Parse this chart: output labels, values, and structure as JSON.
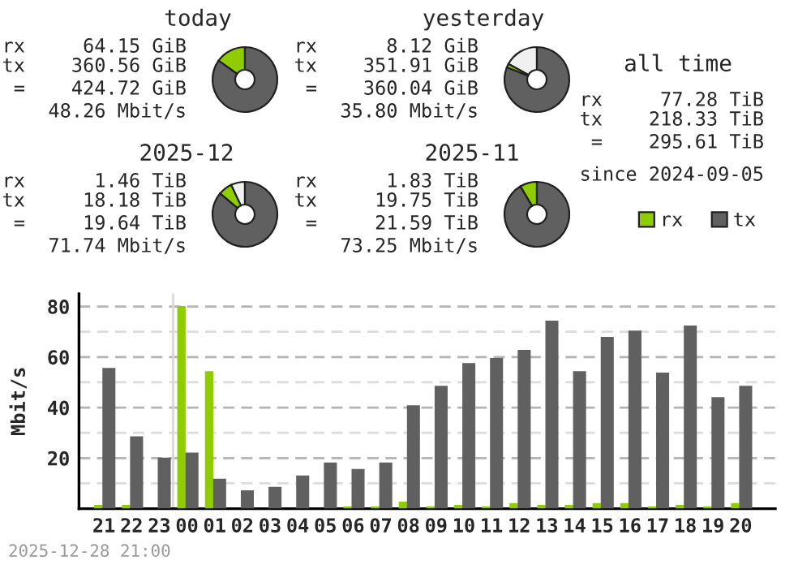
{
  "chart_data": [
    {
      "type": "donut",
      "title": "today",
      "categories": [
        null,
        null,
        null
      ],
      "values": [
        0,
        15.1,
        84.9
      ],
      "colors": [
        "#f0f0f0",
        "#8fcc00",
        "#606060"
      ],
      "annotations": [
        "rx     64.15 GiB",
        "tx    360.56 GiB",
        " =    424.72 GiB",
        "48.26 Mbit/s"
      ]
    },
    {
      "type": "donut",
      "title": "yesterday",
      "categories": [
        null,
        null,
        null
      ],
      "values": [
        17,
        1.9,
        81.1
      ],
      "colors": [
        "#f0f0f0",
        "#8fcc00",
        "#606060"
      ],
      "annotations": [
        "rx      8.12 GiB",
        "tx    351.91 GiB",
        " =    360.04 GiB",
        "35.80 Mbit/s"
      ]
    },
    {
      "type": "donut",
      "title": "2025-12",
      "categories": [
        null,
        null,
        null
      ],
      "values": [
        7,
        6.9,
        86.1
      ],
      "colors": [
        "#f0f0f0",
        "#8fcc00",
        "#606060"
      ],
      "annotations": [
        "rx      1.46 TiB",
        "tx     18.18 TiB",
        " =     19.64 TiB",
        "71.74 Mbit/s"
      ]
    },
    {
      "type": "donut",
      "title": "2025-11",
      "categories": [
        null,
        null,
        null
      ],
      "values": [
        0,
        8.5,
        91.5
      ],
      "colors": [
        "#f0f0f0",
        "#8fcc00",
        "#606060"
      ],
      "annotations": [
        "rx      1.83 TiB",
        "tx     19.75 TiB",
        " =     21.59 TiB",
        "73.25 Mbit/s"
      ]
    },
    {
      "type": "other",
      "title": "all time",
      "annotations": [
        "rx     77.28 TiB",
        "tx    218.33 TiB",
        " =    295.61 TiB",
        "since 2024-09-05"
      ]
    },
    {
      "type": "bar",
      "ylabel": "Mbit/s",
      "annotations": [
        "2025-12-28 21:00"
      ],
      "categories": [
        "21",
        "22",
        "23",
        "00",
        "01",
        "02",
        "03",
        "04",
        "05",
        "06",
        "07",
        "08",
        "09",
        "10",
        "11",
        "12",
        "13",
        "14",
        "15",
        "16",
        "17",
        "18",
        "19",
        "20"
      ],
      "series": [
        {
          "name": "rx",
          "color": "#8fcc00",
          "values": [
            1.5,
            1.5,
            0,
            80.2,
            54.4,
            0,
            0,
            0,
            0,
            0.9,
            0.9,
            2.8,
            0.9,
            1.5,
            0.9,
            2.2,
            1.5,
            1.5,
            2.2,
            2.2,
            0.9,
            1.5,
            0.9,
            2.2
          ]
        },
        {
          "name": "tx",
          "color": "#606060",
          "values": [
            55.7,
            28.6,
            20.2,
            22.2,
            11.8,
            7.3,
            8.6,
            13.1,
            18.3,
            15.7,
            18.3,
            40.9,
            48.6,
            57.6,
            59.6,
            62.8,
            74.4,
            54.4,
            68.0,
            70.5,
            53.8,
            72.5,
            44.1,
            48.6
          ]
        }
      ],
      "ylim": [
        0,
        85
      ],
      "yticks": [
        {
          "value": 10,
          "label": null
        },
        20,
        {
          "value": 30,
          "label": null
        },
        40,
        {
          "value": 50,
          "label": null
        },
        60,
        {
          "value": 70,
          "label": null
        },
        80
      ],
      "grid": "y",
      "legend": "top right",
      "ref_lines": [
        {
          "axis": "x",
          "value": "00",
          "color": "#d8d8d8"
        }
      ]
    }
  ]
}
